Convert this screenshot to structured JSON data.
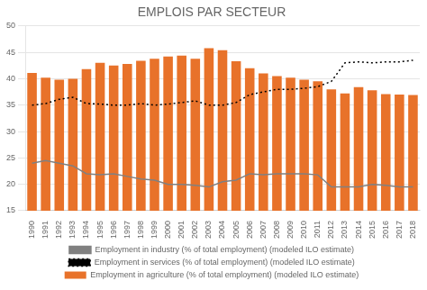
{
  "chart_data": {
    "type": "bar",
    "title": "EMPLOIS PAR SECTEUR",
    "categories": [
      1990,
      1991,
      1992,
      1993,
      1994,
      1995,
      1996,
      1997,
      1998,
      1999,
      2000,
      2001,
      2002,
      2003,
      2004,
      2005,
      2006,
      2007,
      2008,
      2009,
      2010,
      2011,
      2012,
      2013,
      2014,
      2015,
      2016,
      2017,
      2018
    ],
    "series": [
      {
        "name": "Employment in agriculture (% of total employment) (modeled ILO estimate)",
        "type": "bar",
        "color": "#E8722A",
        "values": [
          41.1,
          40.2,
          39.8,
          40.0,
          41.8,
          43.0,
          42.5,
          42.8,
          43.4,
          43.8,
          44.2,
          44.4,
          43.8,
          45.8,
          45.4,
          43.3,
          42.0,
          41.0,
          40.5,
          40.2,
          39.8,
          39.5,
          38.0,
          37.2,
          38.4,
          37.8,
          37.1,
          37.0,
          36.9
        ]
      },
      {
        "name": "Employment in industry (% of total employment) (modeled ILO estimate)",
        "type": "line",
        "color": "#808080",
        "line_style": "solid",
        "values": [
          24.0,
          24.5,
          24.0,
          23.5,
          22.0,
          21.8,
          22.0,
          21.5,
          21.0,
          20.8,
          20.0,
          20.0,
          19.8,
          19.5,
          20.5,
          20.8,
          22.0,
          21.8,
          22.0,
          22.0,
          22.0,
          21.8,
          19.5,
          19.5,
          19.5,
          20.0,
          19.8,
          19.5,
          19.5
        ]
      },
      {
        "name": "Employment in services (% of total employment) (modeled ILO estimate)",
        "type": "line",
        "color": "#000000",
        "line_style": "dotted",
        "values": [
          35.0,
          35.3,
          36.1,
          36.5,
          35.3,
          35.2,
          35.0,
          35.0,
          35.3,
          35.0,
          35.2,
          35.5,
          35.8,
          35.0,
          35.0,
          35.5,
          37.0,
          37.5,
          38.0,
          38.0,
          38.2,
          38.5,
          39.5,
          43.0,
          43.2,
          43.0,
          43.2,
          43.2,
          43.5
        ]
      }
    ],
    "ylim": [
      15,
      50
    ],
    "yticks": [
      15,
      20,
      25,
      30,
      35,
      40,
      45,
      50
    ],
    "grid": true,
    "legend": "bottom"
  }
}
